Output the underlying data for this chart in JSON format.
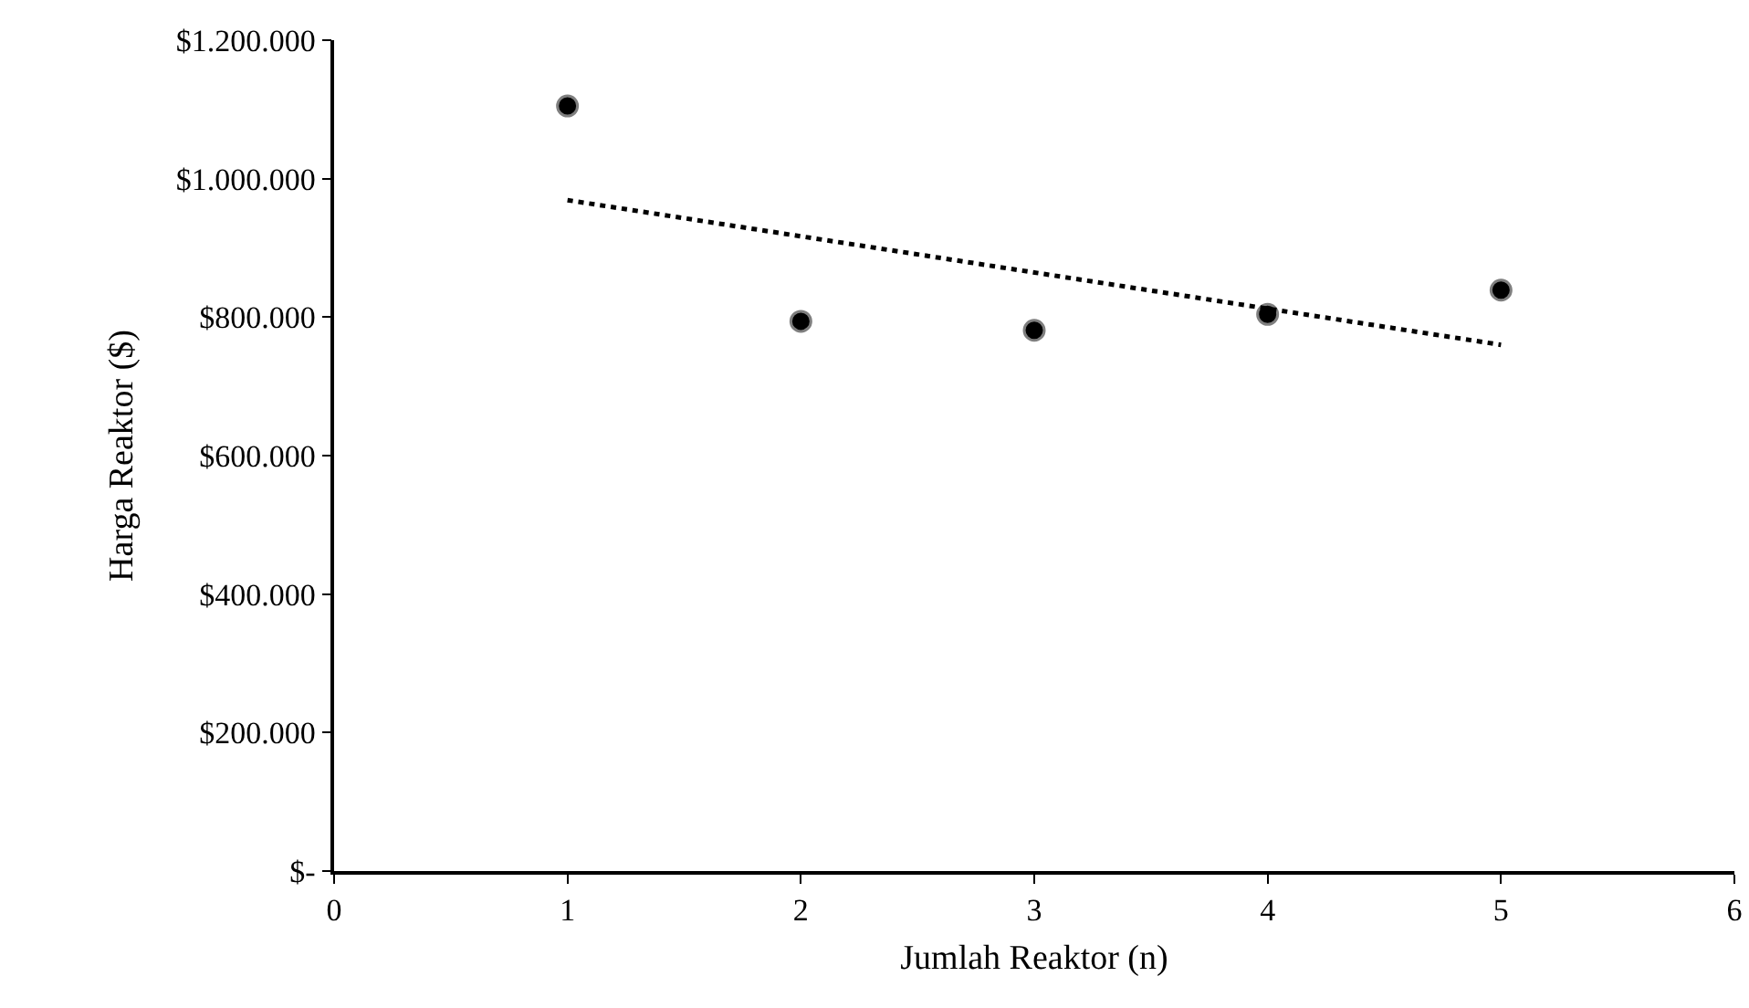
{
  "chart_data": {
    "type": "scatter",
    "xlabel": "Jumlah Reaktor (n)",
    "ylabel": "Harga Reaktor ($)",
    "xlim": [
      0,
      6
    ],
    "xticks": [
      0,
      1,
      2,
      3,
      4,
      5,
      6
    ],
    "ylim": [
      0,
      1200000
    ],
    "yticks": [
      {
        "value": 0,
        "label": "$-"
      },
      {
        "value": 200000,
        "label": "$200.000"
      },
      {
        "value": 400000,
        "label": "$400.000"
      },
      {
        "value": 600000,
        "label": "$600.000"
      },
      {
        "value": 800000,
        "label": "$800.000"
      },
      {
        "value": 1000000,
        "label": "$1.000.000"
      },
      {
        "value": 1200000,
        "label": "$1.200.000"
      }
    ],
    "grid": false,
    "series": [
      {
        "type": "scatter",
        "color": "#000000",
        "marker": "circle",
        "x": [
          1,
          2,
          3,
          4,
          5
        ],
        "values": [
          1105000,
          794000,
          781000,
          804000,
          839000
        ]
      },
      {
        "type": "line",
        "color": "#000000",
        "marker": "none",
        "line_style": "dotted",
        "x": [
          1,
          5
        ],
        "values": [
          969000,
          760000
        ]
      }
    ]
  }
}
